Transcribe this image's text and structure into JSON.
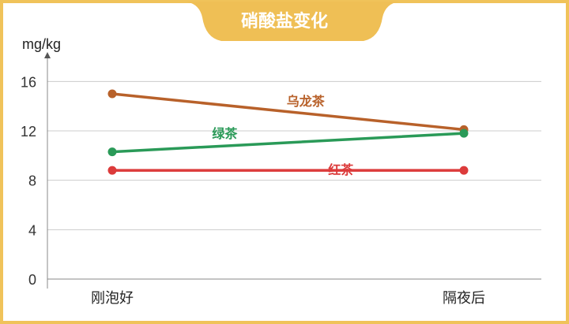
{
  "colors": {
    "frame": "#f0c35a",
    "banner": "#efbf55",
    "grid": "#cccccc",
    "axis": "#888888"
  },
  "chart_data": {
    "type": "line",
    "title": "硝酸盐变化",
    "ylabel": "mg/kg",
    "categories": [
      "刚泡好",
      "隔夜后"
    ],
    "ylim": [
      0,
      18
    ],
    "yticks": [
      0,
      4,
      8,
      12,
      16
    ],
    "grid": true,
    "series": [
      {
        "name": "乌龙茶",
        "values": [
          15.0,
          12.1
        ],
        "color": "#b8612a"
      },
      {
        "name": "绿茶",
        "values": [
          10.3,
          11.8
        ],
        "color": "#2a9a58"
      },
      {
        "name": "红茶",
        "values": [
          8.8,
          8.8
        ],
        "color": "#dc3b3b"
      }
    ]
  }
}
